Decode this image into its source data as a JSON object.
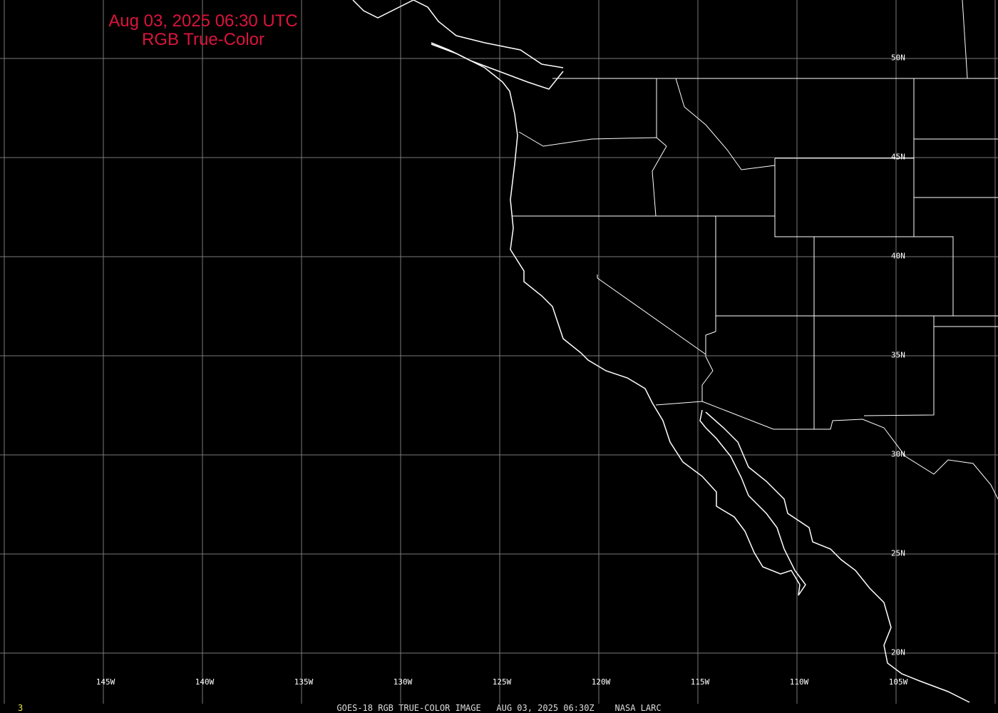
{
  "header": {
    "title_line1": "Aug 03, 2025 06:30 UTC",
    "title_line2": "RGB True-Color",
    "title_color": "#dc143c"
  },
  "longitude_labels": [
    "145W",
    "140W",
    "135W",
    "130W",
    "125W",
    "120W",
    "115W",
    "110W",
    "105W"
  ],
  "latitude_labels": [
    "50N",
    "45N",
    "40N",
    "35N",
    "30N",
    "25N",
    "20N"
  ],
  "footer": {
    "caption": "GOES-18 RGB TRUE-COLOR IMAGE   AUG 03, 2025 06:30Z    NASA LARC",
    "frame_number": "3"
  },
  "colors": {
    "grid": "#808080",
    "boundaries": "#ffffff",
    "background": "#000000"
  }
}
